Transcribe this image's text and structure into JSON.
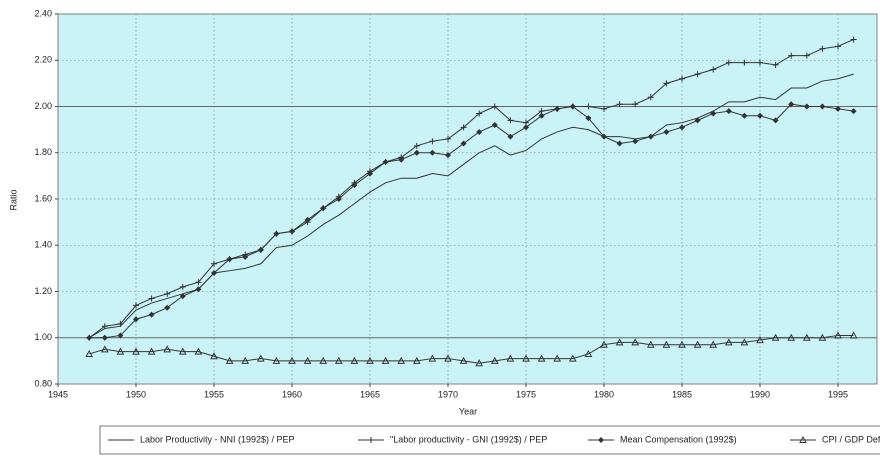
{
  "chart_data": {
    "type": "line",
    "y_label": "Ratio",
    "x_label": "Year",
    "x": [
      1947,
      1948,
      1949,
      1950,
      1951,
      1952,
      1953,
      1954,
      1955,
      1956,
      1957,
      1958,
      1959,
      1960,
      1961,
      1962,
      1963,
      1964,
      1965,
      1966,
      1967,
      1968,
      1969,
      1970,
      1971,
      1972,
      1973,
      1974,
      1975,
      1976,
      1977,
      1978,
      1979,
      1980,
      1981,
      1982,
      1983,
      1984,
      1985,
      1986,
      1987,
      1988,
      1989,
      1990,
      1991,
      1992,
      1993,
      1994,
      1995,
      1996
    ],
    "series": [
      {
        "name": "Labor Productivity - NNI (1992$) / PEP",
        "color": "#333333",
        "marker": "none",
        "values": [
          1.0,
          1.04,
          1.05,
          1.12,
          1.15,
          1.17,
          1.19,
          1.21,
          1.28,
          1.29,
          1.3,
          1.32,
          1.39,
          1.4,
          1.44,
          1.49,
          1.53,
          1.58,
          1.63,
          1.67,
          1.69,
          1.69,
          1.71,
          1.7,
          1.75,
          1.8,
          1.83,
          1.79,
          1.81,
          1.86,
          1.89,
          1.91,
          1.9,
          1.87,
          1.87,
          1.86,
          1.87,
          1.92,
          1.93,
          1.95,
          1.98,
          2.02,
          2.02,
          2.04,
          2.03,
          2.08,
          2.08,
          2.11,
          2.12,
          2.14
        ]
      },
      {
        "name": "\"Labor productivity - GNI (1992$) / PEP",
        "color": "#333333",
        "marker": "plus",
        "values": [
          1.0,
          1.05,
          1.06,
          1.14,
          1.17,
          1.19,
          1.22,
          1.24,
          1.32,
          1.34,
          1.36,
          1.38,
          1.45,
          1.46,
          1.5,
          1.56,
          1.61,
          1.67,
          1.72,
          1.76,
          1.78,
          1.83,
          1.85,
          1.86,
          1.91,
          1.97,
          2.0,
          1.94,
          1.93,
          1.98,
          1.99,
          2.0,
          2.0,
          1.99,
          2.01,
          2.01,
          2.04,
          2.1,
          2.12,
          2.14,
          2.16,
          2.19,
          2.19,
          2.19,
          2.18,
          2.22,
          2.22,
          2.25,
          2.26,
          2.29
        ]
      },
      {
        "name": "Mean Compensation (1992$)",
        "color": "#333333",
        "marker": "diamond",
        "values": [
          1.0,
          1.0,
          1.01,
          1.08,
          1.1,
          1.13,
          1.18,
          1.21,
          1.28,
          1.34,
          1.35,
          1.38,
          1.45,
          1.46,
          1.51,
          1.56,
          1.6,
          1.66,
          1.71,
          1.76,
          1.77,
          1.8,
          1.8,
          1.79,
          1.84,
          1.89,
          1.92,
          1.87,
          1.91,
          1.96,
          1.99,
          2.0,
          1.95,
          1.87,
          1.84,
          1.85,
          1.87,
          1.89,
          1.91,
          1.94,
          1.97,
          1.98,
          1.96,
          1.96,
          1.94,
          2.01,
          2.0,
          2.0,
          1.99,
          1.98
        ]
      },
      {
        "name": "CPI / GDP Deflator",
        "color": "#333333",
        "marker": "triangle",
        "values": [
          0.93,
          0.95,
          0.94,
          0.94,
          0.94,
          0.95,
          0.94,
          0.94,
          0.92,
          0.9,
          0.9,
          0.91,
          0.9,
          0.9,
          0.9,
          0.9,
          0.9,
          0.9,
          0.9,
          0.9,
          0.9,
          0.9,
          0.91,
          0.91,
          0.9,
          0.89,
          0.9,
          0.91,
          0.91,
          0.91,
          0.91,
          0.91,
          0.93,
          0.97,
          0.98,
          0.98,
          0.97,
          0.97,
          0.97,
          0.97,
          0.97,
          0.98,
          0.98,
          0.99,
          1.0,
          1.0,
          1.0,
          1.0,
          1.01,
          1.01
        ]
      }
    ],
    "reference_lines": [
      1.0,
      2.0
    ],
    "xlim": [
      1945,
      1997.5
    ],
    "ylim": [
      0.8,
      2.4
    ],
    "xticks": [
      1945,
      1950,
      1955,
      1960,
      1965,
      1970,
      1975,
      1980,
      1985,
      1990,
      1995
    ],
    "yticks": [
      {
        "value": 0.8,
        "label": "0.80"
      },
      {
        "value": 1.0,
        "label": "1.00"
      },
      {
        "value": 1.2,
        "label": "1.20"
      },
      {
        "value": 1.4,
        "label": "1.40"
      },
      {
        "value": 1.6,
        "label": "1.60"
      },
      {
        "value": 1.8,
        "label": "1.80"
      },
      {
        "value": 2.0,
        "label": "2.00"
      },
      {
        "value": 2.2,
        "label": "2.20"
      },
      {
        "value": 2.4,
        "label": "2.40"
      }
    ],
    "grid": true,
    "background": "#c9f3f6",
    "legend": "bottom"
  }
}
